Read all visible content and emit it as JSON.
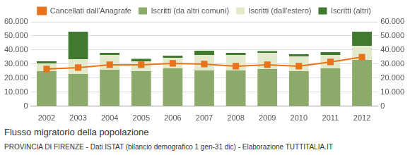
{
  "chart_data": {
    "type": "bar",
    "title": "Flusso migratorio della popolazione",
    "subtitle": "PROVINCIA DI FIRENZE - Dati ISTAT (bilancio demografico 1 gen-31 dic) - Elaborazione TUTTITALIA.IT",
    "categories": [
      "2002",
      "2003",
      "2004",
      "2005",
      "2006",
      "2007",
      "2008",
      "2009",
      "2010",
      "2011",
      "2012"
    ],
    "stacked": true,
    "grid": true,
    "legend": "top",
    "series": [
      {
        "name": "Iscritti (da altri comuni)",
        "color": "#8cab6b",
        "type": "bar",
        "values": [
          25000,
          23000,
          26000,
          25000,
          27000,
          25500,
          25500,
          26500,
          25000,
          27000,
          33000
        ]
      },
      {
        "name": "Iscritti (dall'estero)",
        "color": "#e2eacb",
        "type": "bar",
        "values": [
          5500,
          10500,
          10500,
          7000,
          7500,
          11000,
          11000,
          11500,
          10500,
          9500,
          10000
        ]
      },
      {
        "name": "Iscritti (altri)",
        "color": "#3f7a2f",
        "type": "bar",
        "values": [
          1500,
          19500,
          1500,
          1700,
          1500,
          3000,
          1500,
          1200,
          1500,
          2000,
          10000
        ]
      },
      {
        "name": "Cancellati dall'Anagrafe",
        "color": "#e8731a",
        "type": "line",
        "marker": "square",
        "values": [
          26500,
          27500,
          29500,
          29500,
          30500,
          30000,
          28500,
          29500,
          28500,
          31500,
          35000
        ]
      }
    ],
    "ylim": [
      0,
      60000
    ],
    "yticks": [
      0,
      {
        "value": 10000,
        "label": "10.000"
      },
      {
        "value": 20000,
        "label": "20.000"
      },
      {
        "value": 30000,
        "label": "30.000"
      },
      {
        "value": 40000,
        "label": "40.000"
      },
      {
        "value": 50000,
        "label": "50.000"
      },
      {
        "value": 60000,
        "label": "60.000"
      }
    ],
    "y2lim": [
      0,
      60000
    ],
    "y2ticks": [
      0,
      {
        "value": 10000,
        "label": "10.000"
      },
      {
        "value": 20000,
        "label": "20.000"
      },
      {
        "value": 30000,
        "label": "30.000"
      },
      {
        "value": 40000,
        "label": "40.000"
      },
      {
        "value": 50000,
        "label": "50.000"
      },
      {
        "value": 60000,
        "label": "60.000"
      }
    ]
  }
}
